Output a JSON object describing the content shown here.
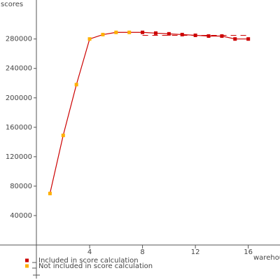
{
  "chart_data": {
    "type": "line",
    "y_label": "scores",
    "x_label": "warehouses",
    "x": [
      1,
      2,
      3,
      4,
      5,
      6,
      7,
      8,
      9,
      10,
      11,
      12,
      13,
      14,
      15,
      16
    ],
    "series": [
      {
        "name": "Included in score calculation",
        "color": "#cc0000",
        "values": [
          null,
          null,
          null,
          null,
          null,
          null,
          null,
          289000,
          288000,
          287000,
          286000,
          285000,
          284000,
          284000,
          280000,
          280000
        ]
      },
      {
        "name": "Not included in score calculation",
        "color": "#ffb000",
        "values": [
          70000,
          149000,
          218000,
          280000,
          286000,
          289000,
          289000,
          null,
          null,
          null,
          null,
          null,
          null,
          null,
          null,
          null
        ]
      }
    ],
    "line_color": "#cc0000",
    "dashed_line": {
      "y": 285000,
      "x": [
        8,
        16
      ]
    },
    "xlim": [
      0,
      18.4
    ],
    "ylim": [
      0,
      333000
    ],
    "xticks": [
      4,
      8,
      12,
      16
    ],
    "yticks": [
      40000,
      80000,
      120000,
      160000,
      200000,
      240000,
      280000
    ]
  }
}
